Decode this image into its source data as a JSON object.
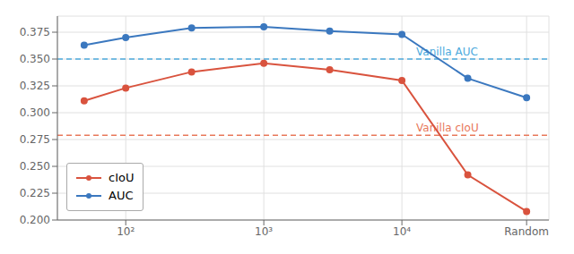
{
  "chart_data": {
    "type": "line",
    "x": [
      50,
      100,
      300,
      1000,
      3000,
      10000,
      30000,
      80000
    ],
    "series": [
      {
        "name": "cIoU",
        "color": "#d9533e",
        "marker": "circle",
        "values": [
          0.311,
          0.323,
          0.338,
          0.346,
          0.34,
          0.33,
          0.242,
          0.208
        ]
      },
      {
        "name": "AUC",
        "color": "#3b78bf",
        "marker": "circle",
        "values": [
          0.363,
          0.37,
          0.379,
          0.38,
          0.376,
          0.373,
          0.332,
          0.314
        ]
      }
    ],
    "annotations": [
      {
        "y": 0.35,
        "text": "Vanilla AUC",
        "color": "#4daadd",
        "line_style": "dashed"
      },
      {
        "y": 0.279,
        "text": "Vanilla cIoU",
        "color": "#e8785a",
        "line_style": "dashed"
      }
    ],
    "log": "x",
    "xlim": [
      32,
      116000
    ],
    "xticks": [
      {
        "value": 100,
        "label": "10²"
      },
      {
        "value": 1000,
        "label": "10³"
      },
      {
        "value": 10000,
        "label": "10⁴"
      },
      {
        "value": 80000,
        "label": "Random"
      }
    ],
    "ylim": [
      0.2,
      0.39
    ],
    "yticks": [
      {
        "value": 0.2,
        "label": "0.200"
      },
      0.225,
      {
        "value": 0.25,
        "label": "0.250"
      },
      0.275,
      {
        "value": 0.3,
        "label": "0.300"
      },
      0.325,
      {
        "value": 0.35,
        "label": "0.350"
      },
      0.375
    ],
    "grid": true,
    "legend": "lower left"
  }
}
